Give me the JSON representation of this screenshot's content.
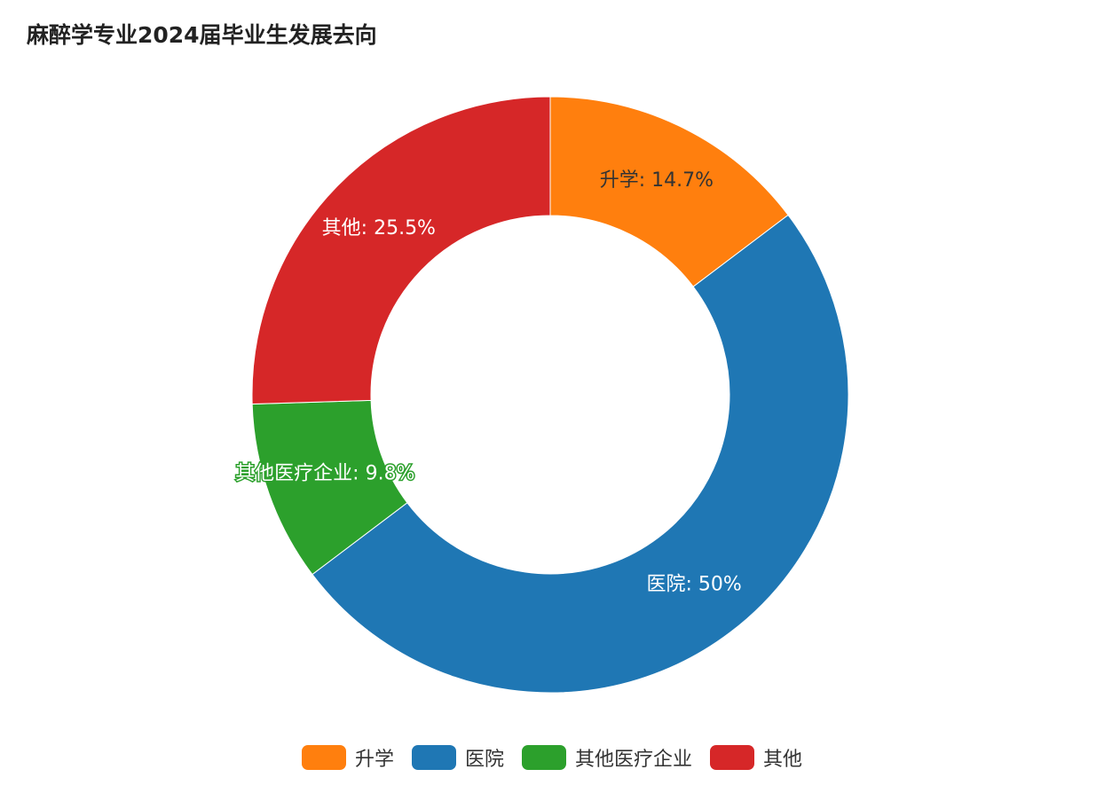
{
  "chart_data": {
    "type": "pie",
    "donut": true,
    "title": "麻醉学专业2024届毕业生发展去向",
    "categories": [
      "升学",
      "医院",
      "其他医疗企业",
      "其他"
    ],
    "values": [
      14.7,
      50,
      9.8,
      25.5
    ],
    "data_labels": [
      "升学: 14.7%",
      "医院: 50%",
      "其他医疗企业: 9.8%",
      "其他: 25.5%"
    ],
    "colors": [
      "#ff7f0e",
      "#1f77b4",
      "#2ca02c",
      "#d62728"
    ],
    "label_colors": [
      "#333333",
      "#ffffff",
      "#ffffff",
      "#ffffff"
    ],
    "label_outline_colors": [
      "none",
      "none",
      "#2ca02c",
      "none"
    ],
    "legend_position": "bottom"
  }
}
